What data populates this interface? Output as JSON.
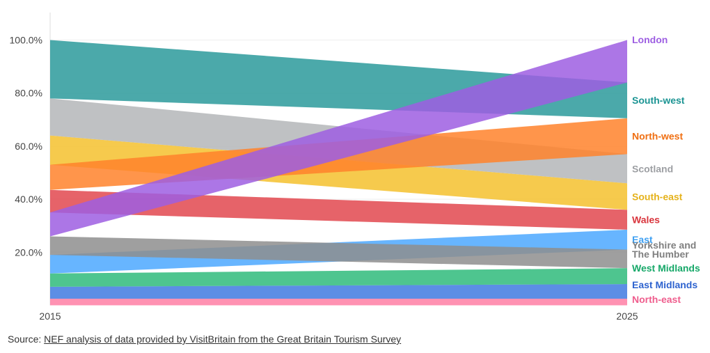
{
  "chart_data": {
    "type": "area",
    "x": [
      "2015",
      "2025"
    ],
    "ylim": [
      0,
      100
    ],
    "y_ticks": [
      "20.0%",
      "40.0%",
      "60.0%",
      "80.0%",
      "100.0%"
    ],
    "y_tick_values": [
      20,
      40,
      60,
      80,
      100
    ],
    "grid": true,
    "series": [
      {
        "name": "North-east",
        "color": "#ff7fa5",
        "start": [
          0,
          2.5
        ],
        "end": [
          0,
          2.5
        ]
      },
      {
        "name": "East Midlands",
        "color": "#3f7ae0",
        "start": [
          2.5,
          7
        ],
        "end": [
          2.5,
          8
        ]
      },
      {
        "name": "West Midlands",
        "color": "#2fbb7b",
        "start": [
          7,
          12
        ],
        "end": [
          8,
          14
        ]
      },
      {
        "name": "East",
        "color": "#4ca8ff",
        "start": [
          12,
          19
        ],
        "end": [
          21,
          28.5
        ]
      },
      {
        "name": "Yorkshire and The Humber",
        "color": "#8e8e8e",
        "start": [
          19,
          26
        ],
        "end": [
          14,
          21
        ]
      },
      {
        "name": "Wales",
        "color": "#e2484f",
        "start": [
          35,
          43.5
        ],
        "end": [
          28.5,
          36
        ]
      },
      {
        "name": "South-east",
        "color": "#f4c12e",
        "start": [
          53,
          64
        ],
        "end": [
          36,
          46
        ]
      },
      {
        "name": "Scotland",
        "color": "#b4b6b9",
        "start": [
          64,
          78
        ],
        "end": [
          46,
          57
        ]
      },
      {
        "name": "North-west",
        "color": "#ff832c",
        "start": [
          43.5,
          53
        ],
        "end": [
          57,
          70.5
        ]
      },
      {
        "name": "South-west",
        "color": "#2c9a9b",
        "start": [
          78,
          100
        ],
        "end": [
          70.5,
          84
        ]
      },
      {
        "name": "London",
        "color": "#9d5ee2",
        "start": [
          26,
          35
        ],
        "end": [
          84,
          100
        ]
      }
    ],
    "legend_placement": "right-end labels",
    "label_colors": {
      "London": "#9d5ee2",
      "South-west": "#1b9493",
      "North-west": "#f06f12",
      "Scotland": "#9d9fa3",
      "South-east": "#e5b21b",
      "Wales": "#d9353d",
      "East": "#3fa0f2",
      "Yorkshire and The Humber": "#7f7f7f",
      "West Midlands": "#17a869",
      "East Midlands": "#2e63cf",
      "North-east": "#ef5d8d"
    }
  },
  "source": {
    "prefix": "Source: ",
    "link_text": "NEF analysis of data provided by VisitBritain from the Great Britain Tourism Survey"
  }
}
